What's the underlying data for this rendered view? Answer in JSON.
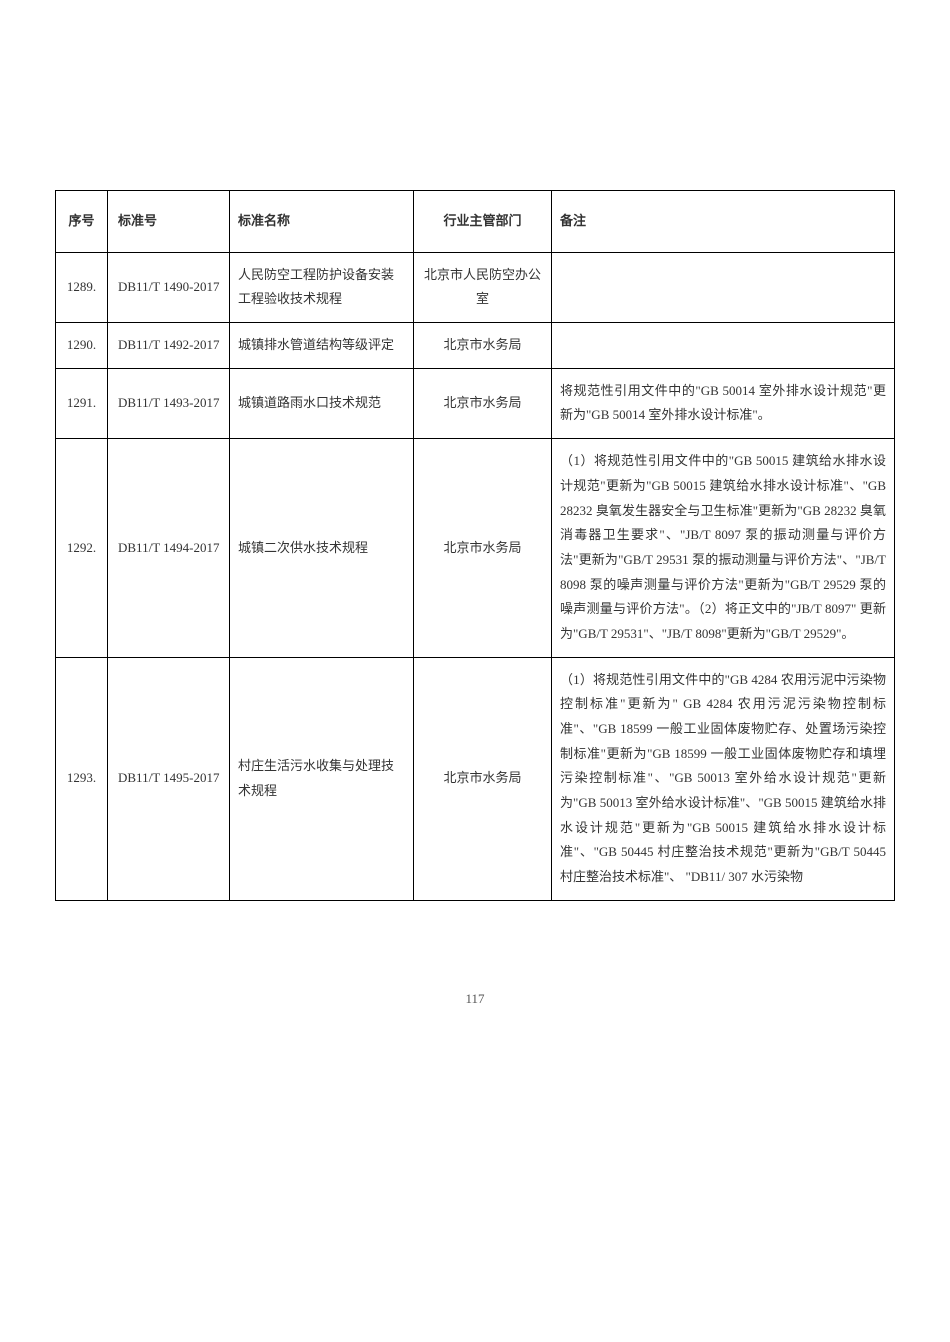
{
  "table": {
    "headers": {
      "seq": "序号",
      "code": "标准号",
      "name": "标准名称",
      "dept": "行业主管部门",
      "note": "备注"
    },
    "rows": [
      {
        "seq": "1289.",
        "code": "DB11/T 1490-2017",
        "name": "人民防空工程防护设备安装工程验收技术规程",
        "dept": "北京市人民防空办公室",
        "note": ""
      },
      {
        "seq": "1290.",
        "code": "DB11/T 1492-2017",
        "name": "城镇排水管道结构等级评定",
        "dept": "北京市水务局",
        "note": ""
      },
      {
        "seq": "1291.",
        "code": "DB11/T 1493-2017",
        "name": "城镇道路雨水口技术规范",
        "dept": "北京市水务局",
        "note": "将规范性引用文件中的\"GB 50014 室外排水设计规范\"更新为\"GB 50014 室外排水设计标准\"。"
      },
      {
        "seq": "1292.",
        "code": "DB11/T 1494-2017",
        "name": "城镇二次供水技术规程",
        "dept": "北京市水务局",
        "note": "（1）将规范性引用文件中的\"GB 50015 建筑给水排水设计规范\"更新为\"GB 50015 建筑给水排水设计标准\"、\"GB 28232 臭氧发生器安全与卫生标准\"更新为\"GB 28232 臭氧消毒器卫生要求\"、\"JB/T 8097 泵的振动测量与评价方法\"更新为\"GB/T 29531  泵的振动测量与评价方法\"、\"JB/T 8098 泵的噪声测量与评价方法\"更新为\"GB/T 29529 泵的噪声测量与评价方法\"。（2）将正文中的\"JB/T 8097\" 更新为\"GB/T 29531\"、\"JB/T 8098\"更新为\"GB/T 29529\"。"
      },
      {
        "seq": "1293.",
        "code": "DB11/T 1495-2017",
        "name": "村庄生活污水收集与处理技术规程",
        "dept": "北京市水务局",
        "note": "（1）将规范性引用文件中的\"GB 4284 农用污泥中污染物控制标准\"更新为\" GB 4284 农用污泥污染物控制标准\"、\"GB 18599 一般工业固体废物贮存、处置场污染控制标准\"更新为\"GB 18599 一般工业固体废物贮存和填埋污染控制标准\"、\"GB 50013 室外给水设计规范\"更新为\"GB 50013 室外给水设计标准\"、\"GB 50015 建筑给水排水设计规范\"更新为\"GB 50015 建筑给水排水设计标准\"、\"GB 50445 村庄整治技术规范\"更新为\"GB/T 50445 村庄整治技术标准\"、 \"DB11/ 307 水污染物"
      }
    ]
  },
  "pageNumber": "117"
}
